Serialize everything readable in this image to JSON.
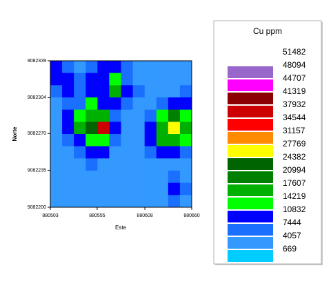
{
  "chart_data": {
    "type": "contour",
    "x_label": "Este",
    "y_label": "Norte",
    "xlim": [
      880503,
      880660
    ],
    "xticks": [
      880503,
      880555,
      880608,
      880660
    ],
    "ylim": [
      9082200,
      9082339
    ],
    "yticks": [
      9082200,
      9082235,
      9082270,
      9082304,
      9082339
    ],
    "legend_title": "Cu ppm",
    "levels": [
      51482,
      48094,
      44707,
      41319,
      37932,
      34544,
      31157,
      27769,
      24382,
      20994,
      17607,
      14219,
      10832,
      7444,
      4057,
      669
    ],
    "level_colors": [
      "#9966cc",
      "#ff00ff",
      "#8b0000",
      "#cc0000",
      "#ff0000",
      "#ff8c00",
      "#ffff00",
      "#006400",
      "#008000",
      "#00b000",
      "#00ff00",
      "#0000ff",
      "#1a6fff",
      "#3399ff",
      "#00ccff"
    ],
    "z": [
      [
        12000,
        9000,
        6000,
        9000,
        12000,
        12000,
        9000,
        6000,
        5000,
        5000,
        5000,
        5000
      ],
      [
        12000,
        12000,
        9000,
        12000,
        12000,
        16000,
        9000,
        5000,
        5000,
        5000,
        5000,
        5000
      ],
      [
        9000,
        12000,
        9000,
        12000,
        12000,
        18000,
        12000,
        9000,
        5000,
        5000,
        5000,
        9000
      ],
      [
        6000,
        9000,
        9000,
        16000,
        12000,
        12000,
        9000,
        5000,
        5000,
        9000,
        12000,
        12000
      ],
      [
        5000,
        12000,
        16000,
        20000,
        18000,
        9000,
        5000,
        5000,
        9000,
        16000,
        22000,
        16000
      ],
      [
        5000,
        12000,
        18000,
        26000,
        38000,
        12000,
        5000,
        5000,
        12000,
        20000,
        30000,
        20000
      ],
      [
        5000,
        9000,
        12000,
        16000,
        16000,
        9000,
        5000,
        5000,
        12000,
        18000,
        18000,
        16000
      ],
      [
        5000,
        5000,
        9000,
        12000,
        12000,
        5000,
        5000,
        5000,
        9000,
        12000,
        12000,
        9000
      ],
      [
        5000,
        5000,
        5000,
        9000,
        5000,
        5000,
        5000,
        5000,
        5000,
        5000,
        5000,
        5000
      ],
      [
        5000,
        5000,
        5000,
        5000,
        5000,
        5000,
        5000,
        5000,
        5000,
        5000,
        9000,
        5000
      ],
      [
        5000,
        5000,
        5000,
        5000,
        5000,
        5000,
        5000,
        5000,
        5000,
        5000,
        12000,
        9000
      ],
      [
        5000,
        5000,
        5000,
        5000,
        5000,
        5000,
        5000,
        5000,
        5000,
        5000,
        9000,
        5000
      ]
    ]
  }
}
